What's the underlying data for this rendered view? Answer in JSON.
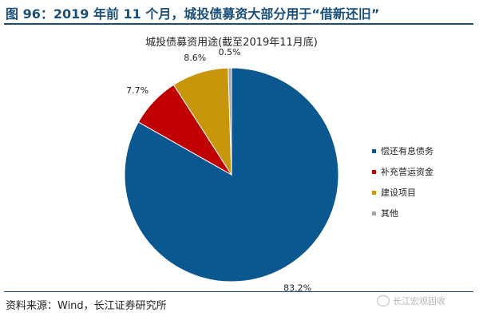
{
  "figure": {
    "title": "图 96：2019 年前 11 个月，城投债募资大部分用于“借新还旧”",
    "source": "资料来源：Wind，长江证券研究所",
    "watermark": "长江宏观固收"
  },
  "chart_data": {
    "type": "pie",
    "title": "城投债募资用途(截至2019年11月底)",
    "slices": [
      {
        "label": "偿还有息债务",
        "value": 83.2,
        "display": "83.2%",
        "color": "#0b578f"
      },
      {
        "label": "补充营运资金",
        "value": 7.7,
        "display": "7.7%",
        "color": "#c00000"
      },
      {
        "label": "建设项目",
        "value": 8.6,
        "display": "8.6%",
        "color": "#c7960a"
      },
      {
        "label": "其他",
        "value": 0.5,
        "display": "0.5%",
        "color": "#a6a6a6"
      }
    ],
    "legend_position": "right"
  }
}
